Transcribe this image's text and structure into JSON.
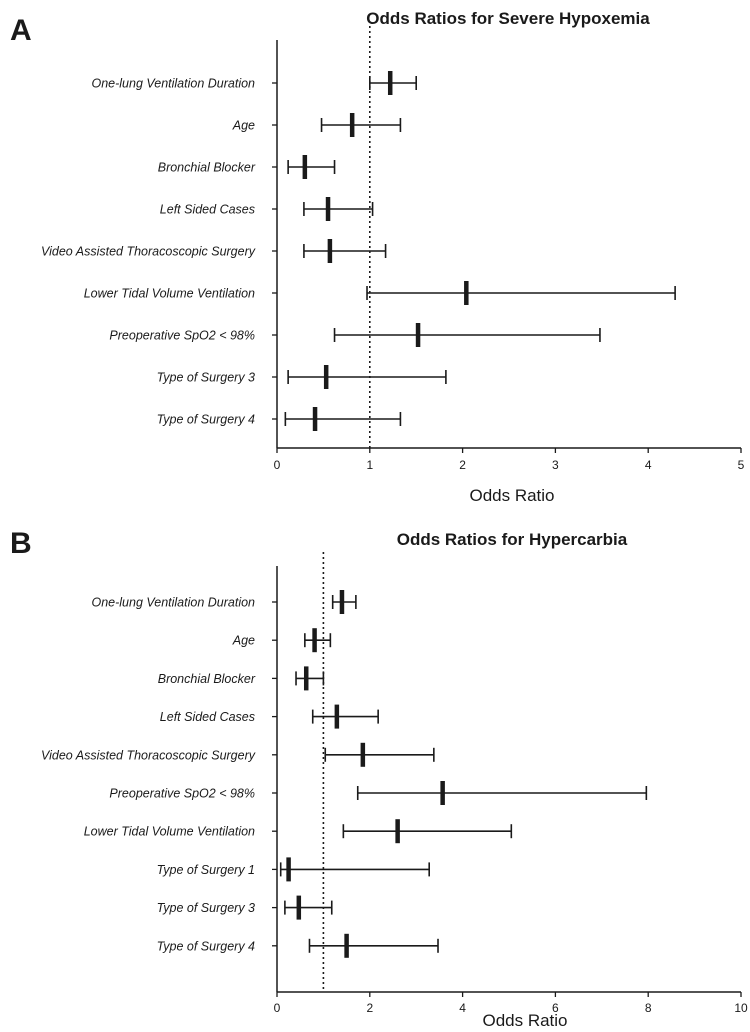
{
  "chart_data": [
    {
      "type": "forest",
      "panel_label": "A",
      "title": "Odds Ratios  for Severe Hypoxemia",
      "xlabel": "Odds Ratio",
      "xlim": [
        0,
        5
      ],
      "xticks": [
        0,
        1,
        2,
        3,
        4,
        5
      ],
      "reference_line": 1,
      "categories": [
        "One-lung Ventilation Duration",
        "Age",
        "Bronchial Blocker",
        "Left Sided Cases",
        "Video Assisted Thoracoscopic Surgery",
        "Lower Tidal Volume Ventilation",
        "Preoperative SpO2 < 98%",
        "Type of Surgery 3",
        "Type of Surgery 4"
      ],
      "estimates": [
        1.22,
        0.81,
        0.3,
        0.55,
        0.57,
        2.04,
        1.52,
        0.53,
        0.41
      ],
      "lower": [
        1.0,
        0.48,
        0.12,
        0.29,
        0.29,
        0.97,
        0.62,
        0.12,
        0.09
      ],
      "upper": [
        1.5,
        1.33,
        0.62,
        1.03,
        1.17,
        4.29,
        3.48,
        1.82,
        1.33
      ]
    },
    {
      "type": "forest",
      "panel_label": "B",
      "title": "Odds Ratios  for Hypercarbia",
      "xlabel": "Odds Ratio",
      "xlim": [
        0,
        10
      ],
      "xticks": [
        0,
        2,
        4,
        6,
        8,
        10
      ],
      "reference_line": 1,
      "categories": [
        "One-lung Ventilation Duration",
        "Age",
        "Bronchial Blocker",
        "Left Sided Cases",
        "Video Assisted Thoracoscopic Surgery",
        "Preoperative SpO2 < 98%",
        "Lower Tidal Volume Ventilation",
        "Type of Surgery 1",
        "Type of Surgery 3",
        "Type of Surgery 4"
      ],
      "estimates": [
        1.4,
        0.81,
        0.63,
        1.29,
        1.85,
        3.57,
        2.6,
        0.25,
        0.47,
        1.5
      ],
      "lower": [
        1.2,
        0.6,
        0.41,
        0.77,
        1.04,
        1.74,
        1.43,
        0.08,
        0.17,
        0.7
      ],
      "upper": [
        1.7,
        1.15,
        1.0,
        2.18,
        3.38,
        7.96,
        5.05,
        3.28,
        1.18,
        3.47
      ]
    }
  ]
}
